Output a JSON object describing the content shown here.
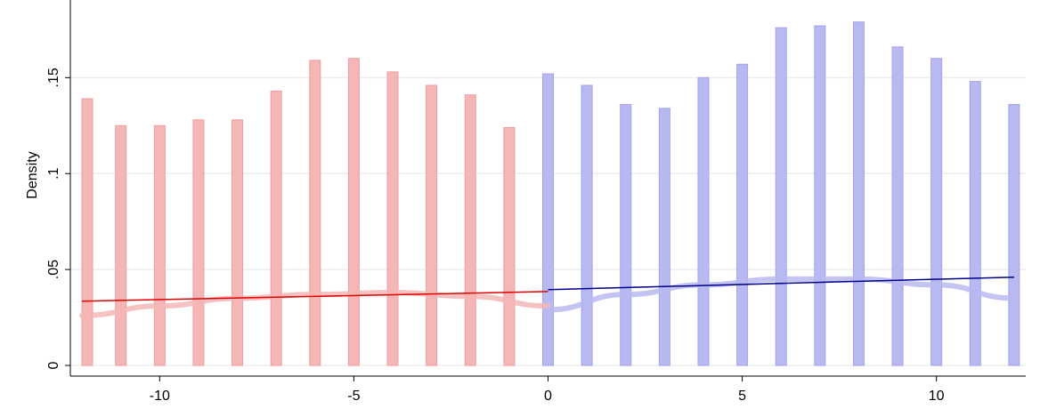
{
  "chart_data": {
    "type": "bar",
    "title": "",
    "xlabel": "",
    "ylabel": "Density",
    "xlim": [
      -12.3,
      12.3
    ],
    "ylim": [
      0,
      0.19
    ],
    "xticks": [
      -10,
      -5,
      0,
      5,
      10
    ],
    "yticks": [
      0,
      0.05,
      0.1,
      0.15
    ],
    "ytick_labels": [
      "0",
      ".05",
      ".1",
      ".15"
    ],
    "grid": true,
    "colors": {
      "left_bars": "#f4b6b6",
      "right_bars": "#b9b9f2",
      "left_fit": "#e00000",
      "right_fit": "#00008b",
      "left_smooth": "#f4b6b6",
      "right_smooth": "#b9b9f2",
      "grid": "#eeeeee"
    },
    "series": [
      {
        "group": "left",
        "x": [
          -12,
          -11,
          -10,
          -9,
          -8,
          -7,
          -6,
          -5,
          -4,
          -3,
          -2,
          -1
        ],
        "values": [
          0.139,
          0.125,
          0.125,
          0.128,
          0.128,
          0.143,
          0.159,
          0.16,
          0.153,
          0.146,
          0.141,
          0.124
        ]
      },
      {
        "group": "right",
        "x": [
          0,
          1,
          2,
          3,
          4,
          5,
          6,
          7,
          8,
          9,
          10,
          11,
          12
        ],
        "values": [
          0.152,
          0.146,
          0.136,
          0.134,
          0.15,
          0.157,
          0.176,
          0.177,
          0.179,
          0.166,
          0.16,
          0.148,
          0.136
        ]
      }
    ],
    "fit_lines": [
      {
        "group": "left",
        "x": [
          -12,
          0
        ],
        "y": [
          0.0335,
          0.0385
        ]
      },
      {
        "group": "right",
        "x": [
          0,
          12
        ],
        "y": [
          0.0395,
          0.046
        ]
      }
    ],
    "smooth_curves": [
      {
        "group": "left",
        "x": [
          -12,
          -10,
          -8,
          -6,
          -4,
          -2,
          0
        ],
        "y": [
          0.026,
          0.031,
          0.035,
          0.037,
          0.038,
          0.036,
          0.031
        ]
      },
      {
        "group": "right",
        "x": [
          0,
          2,
          4,
          6,
          8,
          10,
          12
        ],
        "y": [
          0.029,
          0.037,
          0.042,
          0.045,
          0.045,
          0.042,
          0.035
        ]
      }
    ]
  }
}
